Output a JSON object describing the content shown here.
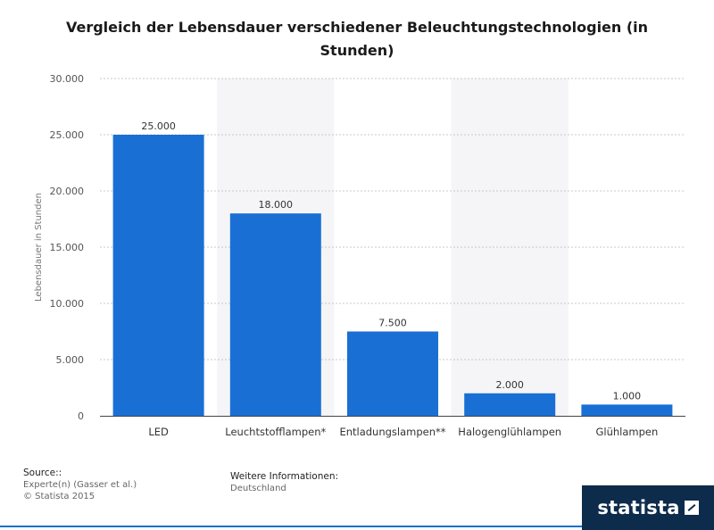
{
  "chart_data": {
    "type": "bar",
    "title": "Vergleich der Lebensdauer verschiedener Beleuchtungstechnologien (in Stunden)",
    "xlabel": "",
    "ylabel": "Lebensdauer in Stunden",
    "categories": [
      "LED",
      "Leuchtstofflampen*",
      "Entladungslampen**",
      "Halogenglühlampen",
      "Glühlampen"
    ],
    "values": [
      25000,
      18000,
      7500,
      2000,
      1000
    ],
    "value_labels": [
      "25.000",
      "18.000",
      "7.500",
      "2.000",
      "1.000"
    ],
    "yticks": [
      0,
      5000,
      10000,
      15000,
      20000,
      25000,
      30000
    ],
    "ytick_labels": [
      "0",
      "5.000",
      "10.000",
      "15.000",
      "20.000",
      "25.000",
      "30.000"
    ],
    "ylim": [
      0,
      30000
    ],
    "bar_color": "#1a6fd4",
    "band_color": "#f5f5f7",
    "grid": true
  },
  "footer": {
    "source_heading": "Source::",
    "source_detail": "Experte(n) (Gasser et al.)",
    "copyright": "© Statista 2015",
    "info_heading": "Weitere Informationen:",
    "info_detail": "Deutschland"
  },
  "logo": {
    "text": "statista"
  }
}
